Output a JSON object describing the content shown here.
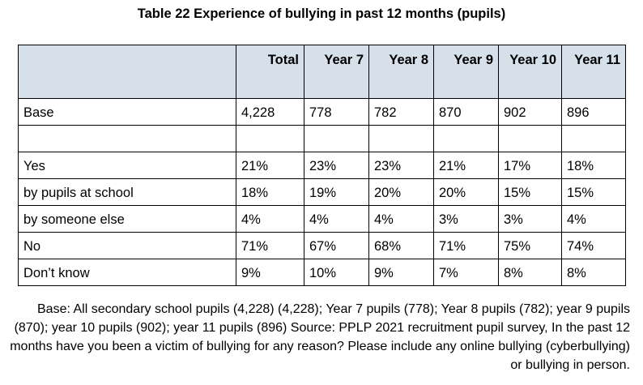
{
  "title": "Table 22 Experience of bullying in past 12 months (pupils)",
  "table": {
    "columns": [
      "",
      "Total",
      "Year 7",
      "Year 8",
      "Year 9",
      "Year 10",
      "Year 11"
    ],
    "rows": [
      {
        "label": "Base",
        "indent": false,
        "values": [
          "4,228",
          "778",
          "782",
          "870",
          "902",
          "896"
        ]
      },
      {
        "label": "",
        "indent": false,
        "values": [
          "",
          "",
          "",
          "",
          "",
          ""
        ]
      },
      {
        "label": "Yes",
        "indent": false,
        "values": [
          "21%",
          "23%",
          "23%",
          "21%",
          "17%",
          "18%"
        ]
      },
      {
        "label": "by pupils at school",
        "indent": true,
        "values": [
          "18%",
          "19%",
          "20%",
          "20%",
          "15%",
          "15%"
        ]
      },
      {
        "label": "by someone else",
        "indent": true,
        "values": [
          "4%",
          "4%",
          "4%",
          "3%",
          "3%",
          "4%"
        ]
      },
      {
        "label": "No",
        "indent": false,
        "values": [
          "71%",
          "67%",
          "68%",
          "71%",
          "75%",
          "74%"
        ]
      },
      {
        "label": "Don’t know",
        "indent": false,
        "values": [
          "9%",
          "10%",
          "9%",
          "7%",
          "8%",
          "8%"
        ]
      }
    ]
  },
  "footnote": "Base: All secondary school pupils (4,228) (4,228); Year 7 pupils (778); Year 8 pupils (782); year 9 pupils (870); year 10 pupils (902); year 11 pupils (896) Source: PPLP 2021 recruitment pupil survey, In the past 12 months have you been a victim of bullying for any reason? Please include any online bullying (cyberbullying) or bullying in person."
}
